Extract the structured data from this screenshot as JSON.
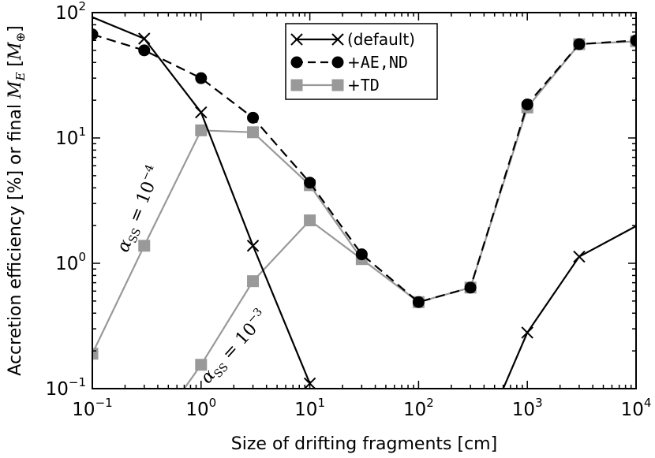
{
  "chart_data": {
    "type": "line",
    "xlabel": "Size of drifting fragments [cm]",
    "ylabel": "Accretion efficiency [%] or final M_E [M_⊕]",
    "ylabel_parts": {
      "prefix": "Accretion efficiency [%] or final ",
      "sym": "M",
      "sub": "E",
      "bracket_open": " [",
      "unit": "M",
      "unit_sub": "⊕",
      "bracket_close": "]"
    },
    "xscale": "log",
    "yscale": "log",
    "xlim": [
      0.1,
      10000
    ],
    "ylim": [
      0.1,
      100
    ],
    "x_ticks": [
      {
        "value": 0.1,
        "base": "10",
        "exp": "−1"
      },
      {
        "value": 1,
        "base": "10",
        "exp": "0"
      },
      {
        "value": 10,
        "base": "10",
        "exp": "1"
      },
      {
        "value": 100,
        "base": "10",
        "exp": "2"
      },
      {
        "value": 1000,
        "base": "10",
        "exp": "3"
      },
      {
        "value": 10000,
        "base": "10",
        "exp": "4"
      }
    ],
    "y_ticks": [
      {
        "value": 0.1,
        "base": "10",
        "exp": "−1"
      },
      {
        "value": 1,
        "base": "10",
        "exp": "0"
      },
      {
        "value": 10,
        "base": "10",
        "exp": "1"
      },
      {
        "value": 100,
        "base": "10",
        "exp": "2"
      }
    ],
    "legend_position": "top-center",
    "series": [
      {
        "name": "(default)",
        "style": "solid",
        "color": "#000000",
        "marker": "x",
        "segments": [
          {
            "x": [
              0.1,
              0.3,
              1,
              3,
              10
            ],
            "y": [
              92,
              62,
              16,
              1.38,
              0.11
            ]
          },
          {
            "x": [
              600,
              1000,
              3000,
              10000
            ],
            "y": [
              0.1,
              0.28,
              1.13,
              1.98
            ]
          }
        ],
        "marker_x": [
          0.3,
          1,
          3,
          10,
          1000,
          3000
        ]
      },
      {
        "name": "+AE,ND",
        "name_prefix": "+",
        "name_mono": "AE,ND",
        "style": "dashed",
        "color": "#000000",
        "marker": "circle",
        "segments": [
          {
            "x": [
              0.1,
              0.3,
              1,
              3,
              10,
              30,
              100,
              300,
              1000,
              3000,
              10000
            ],
            "y": [
              67,
              50,
              30,
              14.5,
              4.4,
              1.18,
              0.49,
              0.64,
              18.5,
              56,
              60
            ]
          }
        ],
        "marker_x": [
          0.1,
          0.3,
          1,
          3,
          10,
          30,
          100,
          300,
          1000,
          3000,
          10000
        ]
      },
      {
        "name": "+TD",
        "name_prefix": "+",
        "name_mono": "TD",
        "style": "solid",
        "color": "#999999",
        "marker": "square",
        "segments": [
          {
            "x": [
              0.1,
              0.3,
              1,
              3,
              10,
              30,
              100,
              300,
              1000,
              3000,
              10000
            ],
            "y": [
              0.19,
              1.38,
              11.5,
              11.1,
              4.2,
              1.08,
              0.49,
              0.64,
              17.5,
              56,
              59
            ]
          },
          {
            "x": [
              0.7,
              1,
              3,
              10,
              30
            ],
            "y": [
              0.1,
              0.155,
              0.72,
              2.2,
              1.08
            ]
          }
        ],
        "marker_x": [
          0.1,
          0.3,
          1,
          3,
          10,
          30,
          100,
          300,
          1000,
          3000,
          10000
        ],
        "extra_markers": [
          {
            "x": 1,
            "y": 0.155
          },
          {
            "x": 3,
            "y": 0.72
          },
          {
            "x": 10,
            "y": 2.2
          }
        ]
      }
    ],
    "annotations": [
      {
        "sym": "α",
        "sub": "SS",
        "rest": " = 10",
        "exp": "−4",
        "at": {
          "x": 0.3,
          "y": 2.6
        },
        "rotate_deg": -68
      },
      {
        "sym": "α",
        "sub": "SS",
        "rest": " = 10",
        "exp": "−3",
        "at": {
          "x": 2.2,
          "y": 0.2
        },
        "rotate_deg": -48
      }
    ]
  }
}
